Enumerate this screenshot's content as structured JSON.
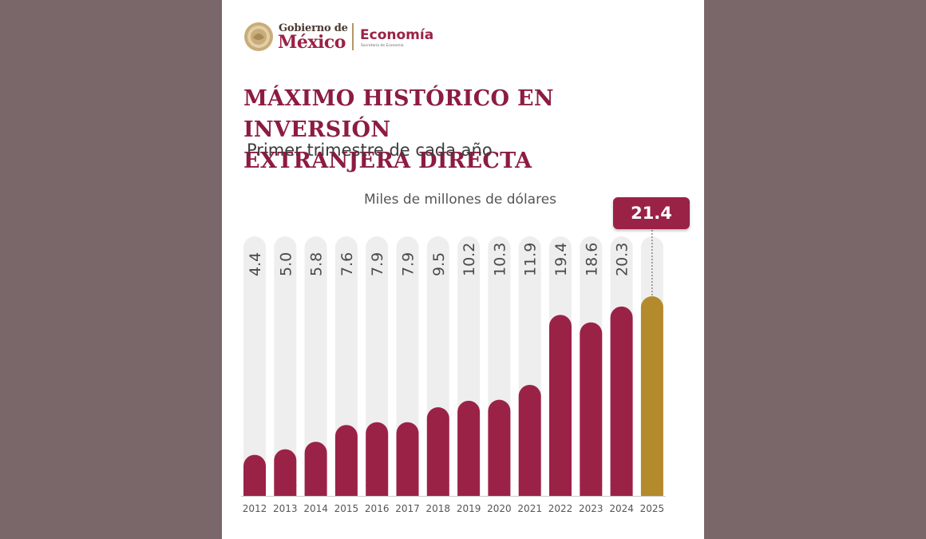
{
  "header": {
    "gobierno_small": "Gobierno de",
    "gobierno_big": "México",
    "secretaria": "Economía",
    "secretaria_sub": "Secretaría de Economía"
  },
  "title_line1": "MÁXIMO HISTÓRICO EN INVERSIÓN",
  "title_line2": "EXTRANJERA DIRECTA",
  "subtitle": "Primer trimestre de cada año",
  "colors": {
    "background": "#7a6769",
    "bar": "#9b2247",
    "bar_highlight": "#b38a2c",
    "track": "#eeeeee"
  },
  "chart_data": {
    "type": "bar",
    "title": "MÁXIMO HISTÓRICO EN INVERSIÓN EXTRANJERA DIRECTA",
    "subtitle": "Primer trimestre de cada año",
    "ylabel": "Miles de millones de dólares",
    "xlabel": "",
    "categories": [
      "2012",
      "2013",
      "2014",
      "2015",
      "2016",
      "2017",
      "2018",
      "2019",
      "2020",
      "2021",
      "2022",
      "2023",
      "2024",
      "2025"
    ],
    "values": [
      4.4,
      5.0,
      5.8,
      7.6,
      7.9,
      7.9,
      9.5,
      10.2,
      10.3,
      11.9,
      19.4,
      18.6,
      20.3,
      21.4
    ],
    "value_labels": [
      "4.4",
      "5.0",
      "5.8",
      "7.6",
      "7.9",
      "7.9",
      "9.5",
      "10.2",
      "10.3",
      "11.9",
      "19.4",
      "18.6",
      "20.3",
      "21.4"
    ],
    "highlight": {
      "category": "2025",
      "label": "21.4"
    },
    "grid": false,
    "legend": "none"
  }
}
